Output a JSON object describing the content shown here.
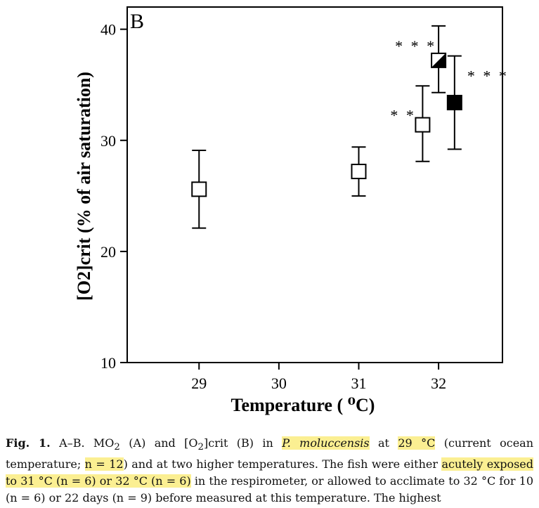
{
  "chart_data": {
    "type": "scatter",
    "panel_label": "B",
    "ylabel": "[O2]crit (% of air saturation)",
    "xlabel": "Temperature ( ⁰C)",
    "x_ticks": [
      "29",
      "30",
      "31",
      "32"
    ],
    "y_ticks": [
      "10",
      "20",
      "30",
      "40"
    ],
    "x_range": [
      28.1,
      32.8
    ],
    "ylim": [
      10,
      42
    ],
    "grid": false,
    "points": [
      {
        "x": 29.0,
        "y": 25.6,
        "err_low": 22.1,
        "err_high": 29.1,
        "marker": "open-square",
        "significance": ""
      },
      {
        "x": 31.0,
        "y": 27.2,
        "err_low": 25.0,
        "err_high": 29.4,
        "marker": "open-square",
        "significance": ""
      },
      {
        "x": 31.8,
        "y": 31.4,
        "err_low": 28.1,
        "err_high": 34.9,
        "marker": "open-square",
        "significance": "* *"
      },
      {
        "x": 32.0,
        "y": 37.2,
        "err_low": 34.3,
        "err_high": 40.3,
        "marker": "half-filled-square",
        "significance": "* * *"
      },
      {
        "x": 32.2,
        "y": 33.4,
        "err_low": 29.2,
        "err_high": 37.6,
        "marker": "filled-square",
        "significance": "* * *"
      }
    ]
  },
  "caption": {
    "fig_label": "Fig. 1.",
    "t1": " A–B. MO",
    "t2": " (A) and [O",
    "t3": "]crit (B) in ",
    "species": "P. moluccensis",
    "t4": " at ",
    "temp29": "29 °C",
    "t5": " (current ocean temperature; ",
    "n12": "n = 12",
    "t6": ") and at two higher temperatures. The fish were either ",
    "acute": "acutely exposed to 31 °C (n = 6) or 32 °C (n = 6)",
    "t7": " in the respirometer, or allowed to acclimate to 32 °C for 10 (n = 6) or 22 days (n = 9) before measured at this temperature. The highest",
    "sub2": "2"
  }
}
